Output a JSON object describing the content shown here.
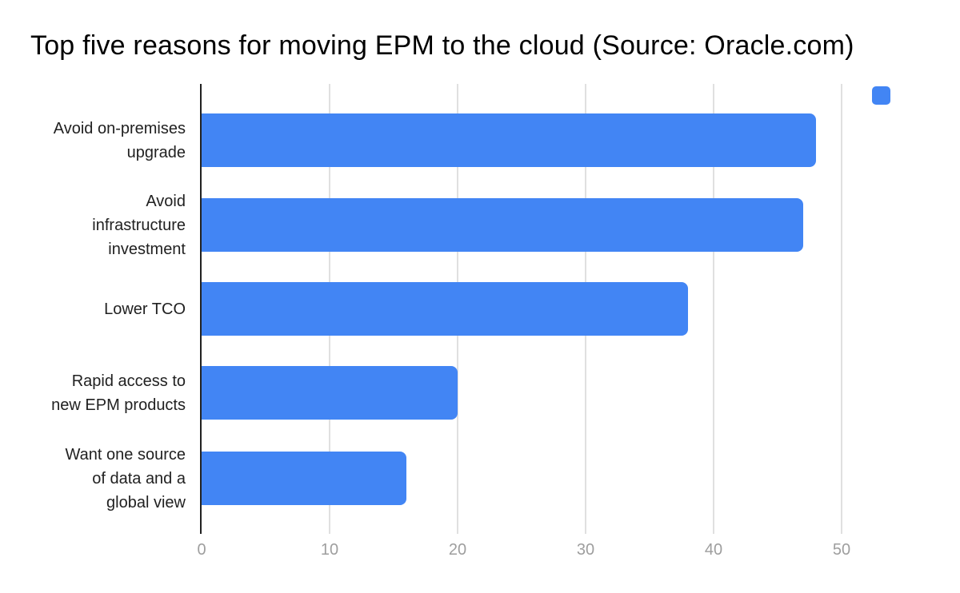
{
  "title": "Top five reasons for moving EPM to the cloud (Source: Oracle.com)",
  "colors": {
    "bar": "#4285F4",
    "axis": "#212121",
    "gridline": "#e0e0e0",
    "tick_label": "#9e9e9e",
    "category_label": "#212121",
    "title": "#000000",
    "background": "#ffffff"
  },
  "legend": {
    "swatch_color": "#4285F4",
    "label": "",
    "position": "top-right"
  },
  "chart_data": {
    "type": "bar",
    "orientation": "horizontal",
    "title": "Top five reasons for moving EPM to the cloud (Source: Oracle.com)",
    "categories": [
      "Avoid on-premises\nupgrade",
      "Avoid\ninfrastructure\ninvestment",
      "Lower TCO",
      "Rapid access to\nnew EPM products",
      "Want one source\nof data and a\nglobal view"
    ],
    "values": [
      48,
      47,
      38,
      20,
      16
    ],
    "xlabel": "",
    "ylabel": "",
    "x_ticks": [
      0,
      10,
      20,
      30,
      40,
      50
    ],
    "xlim": [
      0,
      56.75
    ],
    "grid": "vertical-only",
    "legend_position": "top-right"
  }
}
